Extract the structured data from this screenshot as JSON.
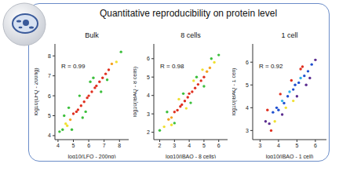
{
  "title": "Quantitative reproducibility on protein level",
  "chart_data": [
    {
      "type": "scatter",
      "title": "Bulk",
      "annotation": "R = 0.99",
      "x_label": "log10(LFQ - 200ng)",
      "y_label": "log10(LFQ - 200ng)",
      "x": [
        4.1,
        4.3,
        4.5,
        4.6,
        4.8,
        5.0,
        5.2,
        5.3,
        5.5,
        5.7,
        5.9,
        6.0,
        6.2,
        6.4,
        6.5,
        6.7,
        6.9,
        7.1,
        7.3,
        7.5,
        7.8,
        8.1,
        4.4,
        4.9,
        5.4,
        5.8,
        6.3,
        6.8,
        4.7,
        5.6,
        6.1,
        7.2
      ],
      "values": [
        4.2,
        4.3,
        4.6,
        4.5,
        4.8,
        5.1,
        5.2,
        5.3,
        5.5,
        5.7,
        5.9,
        6.0,
        6.2,
        6.4,
        6.5,
        6.7,
        6.9,
        7.1,
        7.3,
        7.6,
        7.7,
        8.2,
        5.0,
        4.3,
        6.0,
        5.2,
        6.9,
        6.2,
        5.4,
        4.9,
        6.7,
        6.8
      ],
      "colors": [
        "#3cbf3c",
        "#3cbf3c",
        "#f0e030",
        "#f0e030",
        "#f5a020",
        "#e03020",
        "#e03020",
        "#e03020",
        "#e03020",
        "#e03020",
        "#e03020",
        "#e03020",
        "#e03020",
        "#e03020",
        "#e03020",
        "#e03020",
        "#e03020",
        "#e03020",
        "#e03020",
        "#f5a020",
        "#f0e030",
        "#3cbf3c",
        "#3cbf3c",
        "#3cbf3c",
        "#3cbf3c",
        "#3cbf3c",
        "#3cbf3c",
        "#3cbf3c",
        "#3cbf3c",
        "#3cbf3c",
        "#3cbf3c",
        "#3cbf3c"
      ],
      "xlim": [
        3.8,
        8.6
      ],
      "ylim": [
        3.8,
        8.6
      ],
      "xticks": [
        4,
        5,
        6,
        7,
        8
      ],
      "yticks": [
        4,
        5,
        6,
        7,
        8
      ],
      "marker": "circle"
    },
    {
      "type": "scatter",
      "title": "8 cells",
      "annotation": "R = 0.98",
      "x_label": "log10(iBAQ - 8 cells)",
      "y_label": "log10(iBAQ - 8 cells)",
      "x": [
        2.0,
        2.3,
        2.6,
        2.8,
        3.0,
        3.2,
        3.4,
        3.5,
        3.7,
        3.9,
        4.0,
        4.2,
        4.4,
        4.6,
        4.8,
        5.0,
        5.2,
        5.4,
        5.7,
        6.0,
        2.5,
        3.0,
        3.6,
        4.1,
        4.5,
        5.0,
        5.5,
        2.8,
        3.3,
        3.8,
        4.3,
        4.9
      ],
      "values": [
        2.1,
        2.3,
        2.7,
        2.8,
        3.1,
        3.2,
        3.4,
        3.5,
        3.7,
        3.9,
        4.1,
        4.2,
        4.4,
        4.6,
        4.8,
        5.0,
        5.3,
        5.5,
        5.8,
        6.2,
        3.1,
        2.5,
        4.1,
        3.6,
        5.0,
        4.5,
        6.0,
        2.4,
        3.8,
        3.3,
        4.8,
        5.4
      ],
      "colors": [
        "#3cbf3c",
        "#f0e030",
        "#f5a020",
        "#f5a020",
        "#e03020",
        "#e03020",
        "#e03020",
        "#e03020",
        "#e03020",
        "#e03020",
        "#e03020",
        "#e03020",
        "#e03020",
        "#e03020",
        "#e03020",
        "#e03020",
        "#f5a020",
        "#f5a020",
        "#f0e030",
        "#3cbf3c",
        "#3cbf3c",
        "#3cbf3c",
        "#3cbf3c",
        "#3cbf3c",
        "#3cbf3c",
        "#3cbf3c",
        "#3cbf3c",
        "#f0e030",
        "#f0e030",
        "#f0e030",
        "#f0e030",
        "#f0e030"
      ],
      "xlim": [
        1.6,
        6.6
      ],
      "ylim": [
        1.6,
        6.8
      ],
      "xticks": [
        2,
        3,
        4,
        5,
        6
      ],
      "yticks": [
        2,
        3,
        4,
        5,
        6
      ],
      "marker": "circle"
    },
    {
      "type": "scatter",
      "title": "1 cell",
      "annotation": "R = 0.92",
      "x_label": "log10(iBAQ - 1 cell)",
      "y_label": "log10(iBAQ - 1 cell)",
      "x": [
        3.3,
        3.5,
        3.7,
        3.9,
        4.0,
        4.2,
        4.3,
        4.5,
        4.6,
        4.8,
        4.9,
        5.1,
        5.2,
        5.4,
        5.6,
        5.8,
        6.0,
        3.4,
        3.8,
        4.1,
        4.4,
        4.7,
        5.0,
        5.3,
        5.5,
        3.6,
        4.2,
        4.8,
        5.2,
        5.7
      ],
      "values": [
        3.4,
        3.3,
        3.8,
        4.0,
        3.9,
        4.3,
        4.2,
        4.5,
        4.7,
        4.8,
        5.0,
        5.1,
        5.3,
        5.4,
        5.6,
        5.9,
        6.1,
        3.9,
        3.4,
        4.6,
        4.0,
        5.2,
        4.5,
        5.8,
        5.0,
        3.0,
        3.7,
        4.3,
        5.7,
        5.3
      ],
      "colors": [
        "#5b2d90",
        "#5b2d90",
        "#1f4fd0",
        "#1f4fd0",
        "#1f4fd0",
        "#30b0e8",
        "#1f4fd0",
        "#1f4fd0",
        "#30b0e8",
        "#1f4fd0",
        "#1f4fd0",
        "#1f4fd0",
        "#30b0e8",
        "#1f4fd0",
        "#1f4fd0",
        "#1f4fd0",
        "#5b2d90",
        "#e03020",
        "#f0e030",
        "#e03020",
        "#f0e030",
        "#e03020",
        "#5b2d90",
        "#e03020",
        "#5b2d90",
        "#e03020",
        "#5b2d90",
        "#f0e030",
        "#e03020",
        "#5b2d90"
      ],
      "xlim": [
        2.6,
        6.6
      ],
      "ylim": [
        2.6,
        6.8
      ],
      "xticks": [
        3,
        4,
        5,
        6
      ],
      "yticks": [
        3,
        4,
        5,
        6
      ],
      "marker": "circle"
    }
  ]
}
